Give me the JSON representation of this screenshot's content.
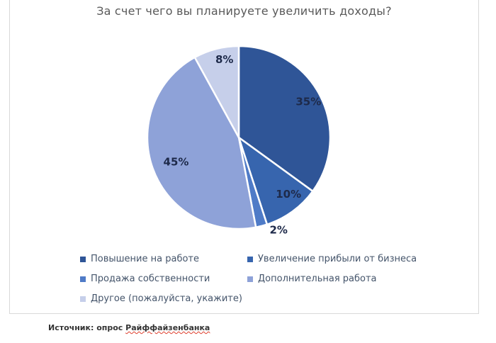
{
  "chart_data": {
    "type": "pie",
    "title": "За счет чего вы планируете увеличить доходы?",
    "start_angle_deg": 0,
    "direction": "clockwise",
    "legend_position": "bottom",
    "legend_columns": 2,
    "slices": [
      {
        "label": "Повышение на работе",
        "value_pct": 35,
        "data_label": "35%",
        "color": "#2F5597",
        "label_position": "inside"
      },
      {
        "label": "Увеличение прибыли от бизнеса",
        "value_pct": 10,
        "data_label": "10%",
        "color": "#3765AE",
        "label_position": "inside"
      },
      {
        "label": "Продажа собственности",
        "value_pct": 2,
        "data_label": "2%",
        "color": "#4F7BC7",
        "label_position": "outside"
      },
      {
        "label": "Дополнительная работа",
        "value_pct": 45,
        "data_label": "45%",
        "color": "#8EA2D8",
        "label_position": "inside"
      },
      {
        "label": "Другое (пожалуйста, укажите)",
        "value_pct": 8,
        "data_label": "8%",
        "color": "#C6CFEA",
        "label_position": "inside"
      }
    ]
  },
  "source": {
    "prefix": "Источник: опрос ",
    "word": "Райффайзенбанка"
  },
  "colors": {
    "title_text": "#595959",
    "legend_text": "#44546A",
    "data_label_text": "#1E2A4A",
    "slice_border": "#FFFFFF",
    "frame_border": "#D9D9D9",
    "source_text": "#333333",
    "spellcheck_underline": "#DD3C2B"
  }
}
